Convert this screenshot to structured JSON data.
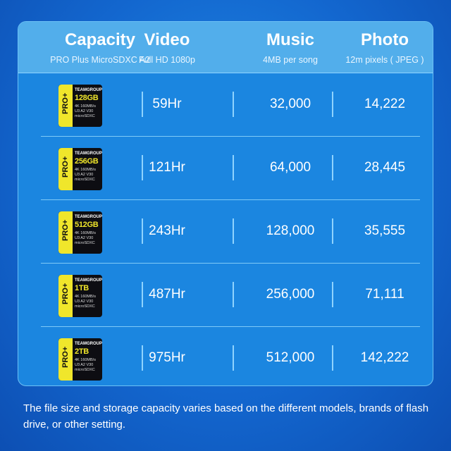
{
  "header": {
    "columns": [
      {
        "title": "Capacity",
        "subtitle": "PRO Plus MicroSDXC A2"
      },
      {
        "title": "Video",
        "subtitle": "Full HD 1080p"
      },
      {
        "title": "Music",
        "subtitle": "4MB per song"
      },
      {
        "title": "Photo",
        "subtitle": "12m pixels ( JPEG )"
      }
    ]
  },
  "card": {
    "brand": "TEAMGROUP",
    "series": "PRO+",
    "spec": "4K 160MB/s U3 A2 V30 microSDXC"
  },
  "rows": [
    {
      "capacity": "128GB",
      "video": "59Hr",
      "music": "32,000",
      "photo": "14,222"
    },
    {
      "capacity": "256GB",
      "video": "121Hr",
      "music": "64,000",
      "photo": "28,445"
    },
    {
      "capacity": "512GB",
      "video": "243Hr",
      "music": "128,000",
      "photo": "35,555"
    },
    {
      "capacity": "1TB",
      "video": "487Hr",
      "music": "256,000",
      "photo": "71,111"
    },
    {
      "capacity": "2TB",
      "video": "975Hr",
      "music": "512,000",
      "photo": "142,222"
    }
  ],
  "footnote": "The file size and storage capacity varies based on the different models, brands of flash drive, or other setting.",
  "colors": {
    "panel": "#1b86e0",
    "header": "#52aeeb",
    "card_yellow": "#f0e62b"
  }
}
